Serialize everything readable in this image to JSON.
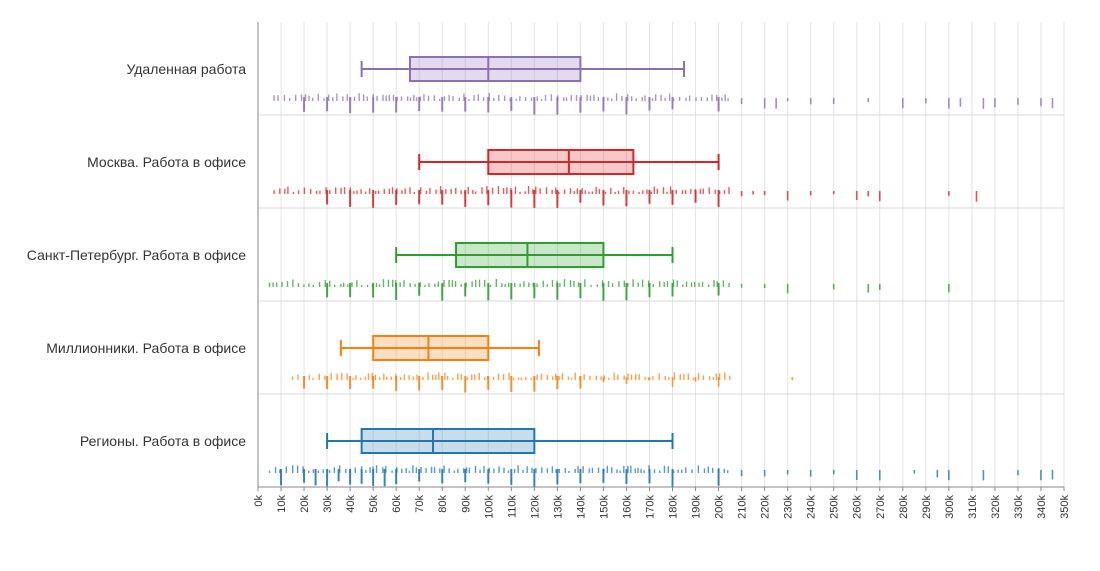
{
  "chart_data": {
    "type": "box",
    "title": "",
    "xlabel": "",
    "ylabel": "",
    "xlim": [
      0,
      350000
    ],
    "x_ticks": [
      {
        "value": 0,
        "label": "0k"
      },
      {
        "value": 10000,
        "label": "10k"
      },
      {
        "value": 20000,
        "label": "20k"
      },
      {
        "value": 30000,
        "label": "30k"
      },
      {
        "value": 40000,
        "label": "40k"
      },
      {
        "value": 50000,
        "label": "50k"
      },
      {
        "value": 60000,
        "label": "60k"
      },
      {
        "value": 70000,
        "label": "70k"
      },
      {
        "value": 80000,
        "label": "80k"
      },
      {
        "value": 90000,
        "label": "90k"
      },
      {
        "value": 100000,
        "label": "100k"
      },
      {
        "value": 110000,
        "label": "110k"
      },
      {
        "value": 120000,
        "label": "120k"
      },
      {
        "value": 130000,
        "label": "130k"
      },
      {
        "value": 140000,
        "label": "140k"
      },
      {
        "value": 150000,
        "label": "150k"
      },
      {
        "value": 160000,
        "label": "160k"
      },
      {
        "value": 170000,
        "label": "170k"
      },
      {
        "value": 180000,
        "label": "180k"
      },
      {
        "value": 190000,
        "label": "190k"
      },
      {
        "value": 200000,
        "label": "200k"
      },
      {
        "value": 210000,
        "label": "210k"
      },
      {
        "value": 220000,
        "label": "220k"
      },
      {
        "value": 230000,
        "label": "230k"
      },
      {
        "value": 240000,
        "label": "240k"
      },
      {
        "value": 250000,
        "label": "250k"
      },
      {
        "value": 260000,
        "label": "260k"
      },
      {
        "value": 270000,
        "label": "270k"
      },
      {
        "value": 280000,
        "label": "280k"
      },
      {
        "value": 290000,
        "label": "290k"
      },
      {
        "value": 300000,
        "label": "300k"
      },
      {
        "value": 310000,
        "label": "310k"
      },
      {
        "value": 320000,
        "label": "320k"
      },
      {
        "value": 330000,
        "label": "330k"
      },
      {
        "value": 340000,
        "label": "340k"
      },
      {
        "value": 350000,
        "label": "350k"
      }
    ],
    "grid": true,
    "legend": "none",
    "series": [
      {
        "label": "Удаленная работа",
        "color": "#8e6fb5",
        "whisker_low": 45000,
        "q1": 66000,
        "median": 100000,
        "q3": 140000,
        "whisker_high": 185000,
        "rug_min": 7000,
        "rug_max": 345000,
        "rug_heavy": [
          20000,
          30000,
          40000,
          50000,
          60000,
          70000,
          80000,
          90000,
          100000,
          110000,
          120000,
          130000,
          140000,
          150000,
          160000,
          170000,
          180000,
          200000
        ],
        "rug_sparse": [
          210000,
          220000,
          225000,
          230000,
          240000,
          250000,
          265000,
          280000,
          290000,
          300000,
          305000,
          315000,
          320000,
          330000,
          340000,
          345000
        ]
      },
      {
        "label": "Москва. Работа в офисе",
        "color": "#d62728",
        "whisker_low": 70000,
        "q1": 100000,
        "median": 135000,
        "q3": 163000,
        "whisker_high": 200000,
        "rug_min": 7000,
        "rug_max": 312000,
        "rug_heavy": [
          30000,
          40000,
          50000,
          60000,
          70000,
          80000,
          90000,
          100000,
          110000,
          120000,
          130000,
          140000,
          150000,
          160000,
          170000,
          180000,
          190000,
          200000
        ],
        "rug_sparse": [
          210000,
          215000,
          220000,
          230000,
          240000,
          250000,
          260000,
          265000,
          270000,
          300000,
          312000
        ]
      },
      {
        "label": "Санкт-Петербург. Работа в офисе",
        "color": "#2ca02c",
        "whisker_low": 60000,
        "q1": 86000,
        "median": 117000,
        "q3": 150000,
        "whisker_high": 180000,
        "rug_min": 5000,
        "rug_max": 300000,
        "rug_heavy": [
          30000,
          40000,
          50000,
          60000,
          70000,
          80000,
          90000,
          100000,
          110000,
          120000,
          130000,
          140000,
          150000,
          160000,
          170000,
          180000,
          200000
        ],
        "rug_sparse": [
          210000,
          220000,
          230000,
          250000,
          265000,
          270000,
          300000
        ]
      },
      {
        "label": "Миллионники. Работа в офисе",
        "color": "#ff7f0e",
        "whisker_low": 36000,
        "q1": 50000,
        "median": 74000,
        "q3": 100000,
        "whisker_high": 122000,
        "rug_min": 15000,
        "rug_max": 232000,
        "rug_heavy": [
          20000,
          30000,
          40000,
          50000,
          60000,
          70000,
          80000,
          90000,
          100000,
          110000,
          120000,
          130000,
          140000
        ],
        "rug_sparse": [
          150000,
          160000,
          170000,
          180000,
          190000,
          200000,
          232000
        ]
      },
      {
        "label": "Регионы. Работа в офисе",
        "color": "#1f77b4",
        "whisker_low": 30000,
        "q1": 45000,
        "median": 76000,
        "q3": 120000,
        "whisker_high": 180000,
        "rug_min": 5000,
        "rug_max": 345000,
        "rug_heavy": [
          10000,
          20000,
          25000,
          30000,
          35000,
          40000,
          45000,
          50000,
          55000,
          60000,
          70000,
          80000,
          90000,
          100000,
          110000,
          120000,
          130000,
          140000,
          150000,
          160000,
          170000,
          180000,
          200000
        ],
        "rug_sparse": [
          210000,
          220000,
          230000,
          240000,
          250000,
          260000,
          270000,
          285000,
          295000,
          300000,
          315000,
          330000,
          340000,
          345000
        ]
      }
    ]
  }
}
